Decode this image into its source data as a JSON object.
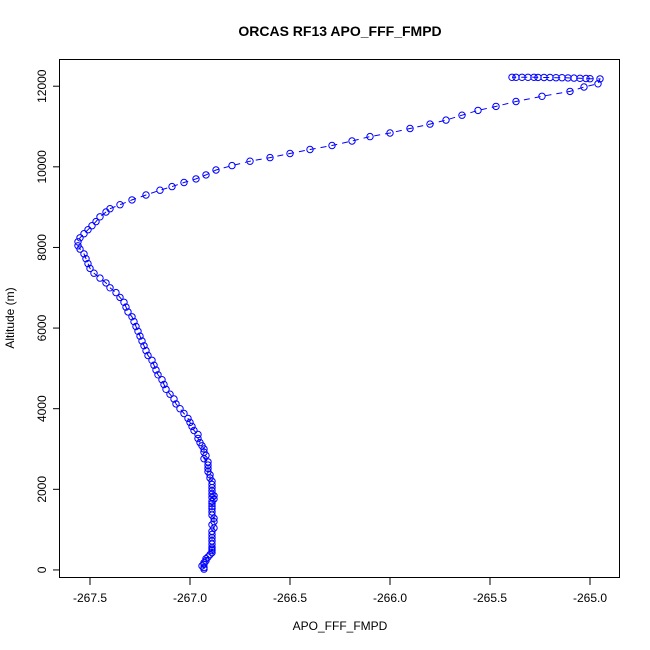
{
  "chart_data": {
    "type": "scatter",
    "title": "ORCAS RF13 APO_FFF_FMPD",
    "xlabel": "APO_FFF_FMPD",
    "ylabel": "Altitude (m)",
    "xlim": [
      -267.65,
      -264.85
    ],
    "ylim": [
      -200,
      12650
    ],
    "xticks": [
      -267.5,
      -267.0,
      -266.5,
      -266.0,
      -265.5,
      -265.0
    ],
    "xtick_labels": [
      "-267.5",
      "-267.0",
      "-266.5",
      "-266.0",
      "-265.5",
      "-265.0"
    ],
    "yticks": [
      0,
      2000,
      4000,
      6000,
      8000,
      10000,
      12000
    ],
    "ytick_labels": [
      "0",
      "2000",
      "4000",
      "6000",
      "8000",
      "10000",
      "12000"
    ],
    "grid": false,
    "marker": "open-circle",
    "connected": true,
    "color": "#0000ff",
    "points": [
      [
        -266.93,
        20
      ],
      [
        -266.93,
        60
      ],
      [
        -266.94,
        100
      ],
      [
        -266.93,
        140
      ],
      [
        -266.93,
        180
      ],
      [
        -266.92,
        230
      ],
      [
        -266.92,
        280
      ],
      [
        -266.91,
        320
      ],
      [
        -266.9,
        380
      ],
      [
        -266.89,
        430
      ],
      [
        -266.89,
        480
      ],
      [
        -266.89,
        520
      ],
      [
        -266.89,
        560
      ],
      [
        -266.89,
        640
      ],
      [
        -266.89,
        720
      ],
      [
        -266.89,
        800
      ],
      [
        -266.89,
        880
      ],
      [
        -266.89,
        960
      ],
      [
        -266.88,
        1040
      ],
      [
        -266.89,
        1120
      ],
      [
        -266.88,
        1200
      ],
      [
        -266.88,
        1280
      ],
      [
        -266.89,
        1360
      ],
      [
        -266.89,
        1440
      ],
      [
        -266.89,
        1520
      ],
      [
        -266.89,
        1580
      ],
      [
        -266.89,
        1640
      ],
      [
        -266.89,
        1700
      ],
      [
        -266.88,
        1760
      ],
      [
        -266.89,
        1800
      ],
      [
        -266.88,
        1840
      ],
      [
        -266.89,
        1880
      ],
      [
        -266.89,
        1960
      ],
      [
        -266.89,
        2040
      ],
      [
        -266.89,
        2120
      ],
      [
        -266.89,
        2200
      ],
      [
        -266.9,
        2280
      ],
      [
        -266.9,
        2360
      ],
      [
        -266.91,
        2440
      ],
      [
        -266.91,
        2520
      ],
      [
        -266.91,
        2600
      ],
      [
        -266.91,
        2680
      ],
      [
        -266.93,
        2760
      ],
      [
        -266.92,
        2840
      ],
      [
        -266.93,
        2920
      ],
      [
        -266.93,
        3000
      ],
      [
        -266.94,
        3080
      ],
      [
        -266.95,
        3160
      ],
      [
        -266.96,
        3260
      ],
      [
        -266.96,
        3360
      ],
      [
        -266.98,
        3460
      ],
      [
        -266.99,
        3560
      ],
      [
        -267.0,
        3660
      ],
      [
        -267.01,
        3760
      ],
      [
        -267.03,
        3880
      ],
      [
        -267.05,
        4000
      ],
      [
        -267.07,
        4120
      ],
      [
        -267.08,
        4240
      ],
      [
        -267.1,
        4360
      ],
      [
        -267.12,
        4480
      ],
      [
        -267.13,
        4600
      ],
      [
        -267.14,
        4720
      ],
      [
        -267.16,
        4840
      ],
      [
        -267.17,
        4960
      ],
      [
        -267.18,
        5080
      ],
      [
        -267.19,
        5200
      ],
      [
        -267.21,
        5320
      ],
      [
        -267.22,
        5440
      ],
      [
        -267.23,
        5560
      ],
      [
        -267.24,
        5680
      ],
      [
        -267.25,
        5800
      ],
      [
        -267.26,
        5920
      ],
      [
        -267.27,
        6040
      ],
      [
        -267.28,
        6160
      ],
      [
        -267.29,
        6280
      ],
      [
        -267.31,
        6400
      ],
      [
        -267.32,
        6520
      ],
      [
        -267.33,
        6640
      ],
      [
        -267.35,
        6760
      ],
      [
        -267.37,
        6880
      ],
      [
        -267.4,
        7000
      ],
      [
        -267.42,
        7120
      ],
      [
        -267.45,
        7240
      ],
      [
        -267.48,
        7360
      ],
      [
        -267.5,
        7480
      ],
      [
        -267.51,
        7600
      ],
      [
        -267.52,
        7720
      ],
      [
        -267.53,
        7840
      ],
      [
        -267.55,
        7960
      ],
      [
        -267.56,
        8040
      ],
      [
        -267.56,
        8140
      ],
      [
        -267.55,
        8240
      ],
      [
        -267.53,
        8340
      ],
      [
        -267.51,
        8440
      ],
      [
        -267.49,
        8540
      ],
      [
        -267.47,
        8640
      ],
      [
        -267.45,
        8760
      ],
      [
        -267.42,
        8880
      ],
      [
        -267.4,
        8960
      ],
      [
        -267.35,
        9060
      ],
      [
        -267.29,
        9180
      ],
      [
        -267.22,
        9300
      ],
      [
        -267.15,
        9420
      ],
      [
        -267.09,
        9510
      ],
      [
        -267.03,
        9610
      ],
      [
        -266.97,
        9700
      ],
      [
        -266.92,
        9800
      ],
      [
        -266.87,
        9920
      ],
      [
        -266.79,
        10030
      ],
      [
        -266.7,
        10140
      ],
      [
        -266.6,
        10230
      ],
      [
        -266.5,
        10330
      ],
      [
        -266.4,
        10430
      ],
      [
        -266.29,
        10530
      ],
      [
        -266.19,
        10640
      ],
      [
        -266.1,
        10750
      ],
      [
        -266.0,
        10840
      ],
      [
        -265.9,
        10950
      ],
      [
        -265.8,
        11060
      ],
      [
        -265.72,
        11160
      ],
      [
        -265.64,
        11280
      ],
      [
        -265.56,
        11400
      ],
      [
        -265.47,
        11500
      ],
      [
        -265.37,
        11620
      ],
      [
        -265.24,
        11750
      ],
      [
        -265.1,
        11870
      ],
      [
        -265.03,
        11980
      ],
      [
        -264.96,
        12060
      ],
      [
        -264.95,
        12180
      ],
      [
        -265.0,
        12185
      ],
      [
        -265.02,
        12190
      ],
      [
        -265.05,
        12195
      ],
      [
        -265.08,
        12200
      ],
      [
        -265.11,
        12205
      ],
      [
        -265.14,
        12210
      ],
      [
        -265.17,
        12212
      ],
      [
        -265.2,
        12215
      ],
      [
        -265.23,
        12215
      ],
      [
        -265.26,
        12218
      ],
      [
        -265.28,
        12220
      ],
      [
        -265.31,
        12220
      ],
      [
        -265.34,
        12222
      ],
      [
        -265.37,
        12222
      ],
      [
        -265.39,
        12220
      ]
    ]
  }
}
